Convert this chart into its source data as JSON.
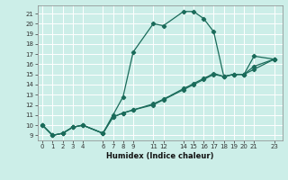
{
  "xlabel": "Humidex (Indice chaleur)",
  "background_color": "#cceee8",
  "line_color": "#1a6b5a",
  "grid_color": "#ffffff",
  "x_ticks": [
    0,
    1,
    2,
    3,
    4,
    6,
    7,
    8,
    9,
    11,
    12,
    14,
    15,
    16,
    17,
    18,
    19,
    20,
    21,
    23
  ],
  "y_ticks": [
    9,
    10,
    11,
    12,
    13,
    14,
    15,
    16,
    17,
    18,
    19,
    20,
    21
  ],
  "ylim": [
    8.5,
    21.8
  ],
  "xlim": [
    -0.5,
    23.8
  ],
  "series1_x": [
    0,
    1,
    2,
    3,
    4,
    6,
    7,
    8,
    9,
    11,
    12,
    14,
    15,
    16,
    17,
    18,
    19,
    20,
    21,
    23
  ],
  "series1_y": [
    10,
    9,
    9.2,
    9.8,
    10,
    9.2,
    11,
    12.8,
    17.2,
    20,
    19.8,
    21.2,
    21.2,
    20.5,
    19.2,
    14.8,
    15,
    15,
    16.8,
    16.5
  ],
  "series2_x": [
    0,
    1,
    2,
    3,
    4,
    6,
    7,
    8,
    9,
    11,
    12,
    14,
    15,
    16,
    17,
    18,
    19,
    20,
    21,
    23
  ],
  "series2_y": [
    10,
    9,
    9.2,
    9.8,
    10,
    9.2,
    10.8,
    11.2,
    11.5,
    12.0,
    12.5,
    13.5,
    14.0,
    14.5,
    15.0,
    14.8,
    15.0,
    15.0,
    15.5,
    16.5
  ],
  "series3_x": [
    0,
    1,
    2,
    3,
    4,
    6,
    7,
    8,
    9,
    11,
    12,
    14,
    15,
    16,
    17,
    18,
    19,
    20,
    21,
    23
  ],
  "series3_y": [
    10,
    9,
    9.2,
    9.8,
    10,
    9.2,
    10.8,
    11.2,
    11.5,
    12.1,
    12.55,
    13.6,
    14.1,
    14.6,
    15.1,
    14.8,
    15.0,
    15.0,
    15.8,
    16.5
  ]
}
